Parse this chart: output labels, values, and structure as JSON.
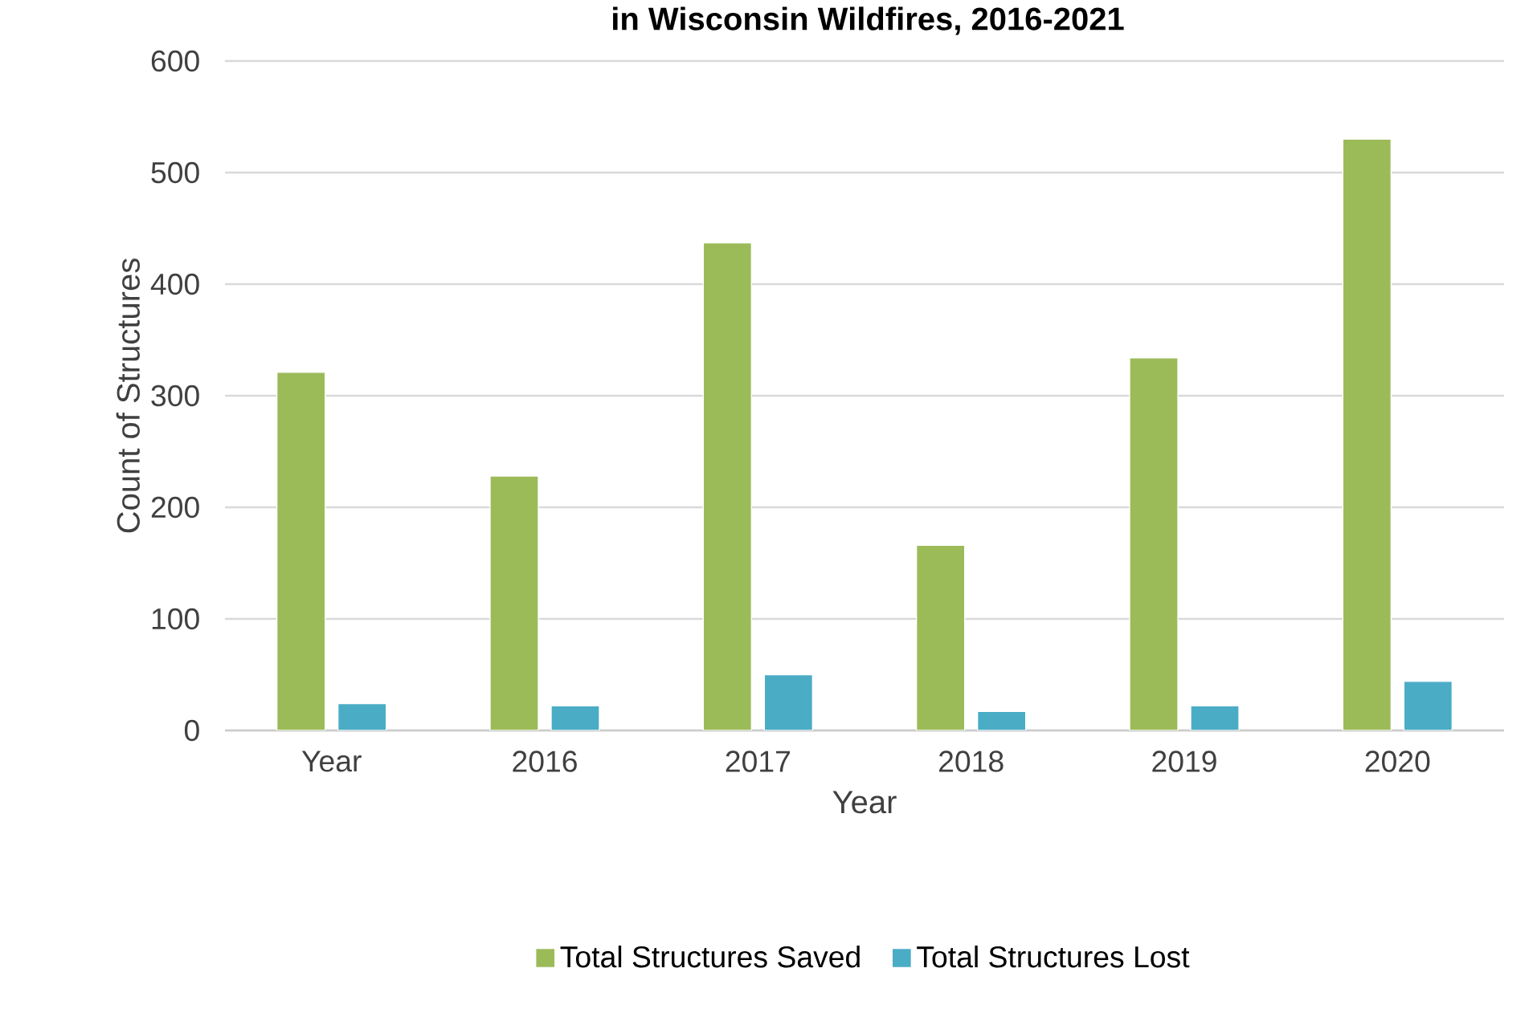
{
  "chart_data": {
    "type": "bar",
    "title": "in Wisconsin Wildfires, 2016-2021",
    "xlabel": "Year",
    "ylabel": "Count of Structures",
    "categories": [
      "Year",
      "2016",
      "2017",
      "2018",
      "2019",
      "2020"
    ],
    "series": [
      {
        "name": "Total Structures Saved",
        "color": "#9bbb59",
        "values": [
          321,
          228,
          437,
          166,
          334,
          530
        ]
      },
      {
        "name": "Total Structures Lost",
        "color": "#4bacc6",
        "values": [
          24,
          22,
          50,
          17,
          22,
          44
        ]
      }
    ],
    "ylim": [
      0,
      600
    ],
    "yticks": [
      0,
      100,
      200,
      300,
      400,
      500,
      600
    ],
    "grid": "y",
    "legend": "bottom"
  }
}
